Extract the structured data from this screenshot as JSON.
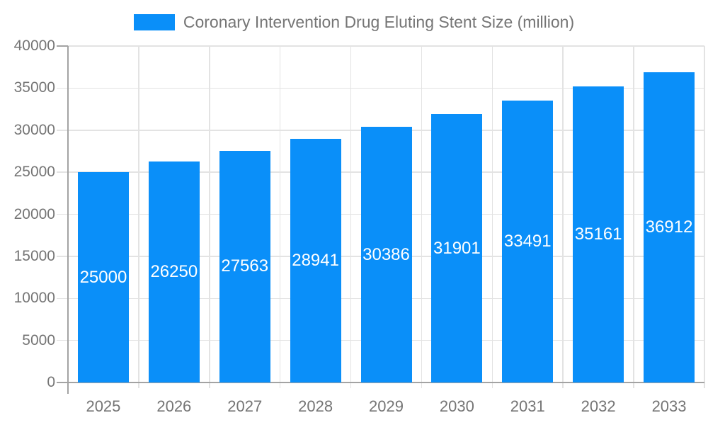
{
  "chart_data": {
    "type": "bar",
    "title": "Coronary Intervention Drug Eluting Stent Size (million)",
    "categories": [
      "2025",
      "2026",
      "2027",
      "2028",
      "2029",
      "2030",
      "2031",
      "2032",
      "2033"
    ],
    "values": [
      25000,
      26250,
      27563,
      28941,
      30386,
      31901,
      33491,
      35161,
      36912
    ],
    "xlabel": "",
    "ylabel": "",
    "ylim": [
      0,
      40000
    ],
    "ytick_step": 5000,
    "grid": true,
    "legend_position": "top-center",
    "colors": {
      "bar": "#0a8ff9",
      "bar_label": "#ffffff",
      "axis_text": "#757575",
      "gridline": "#e3e3e3",
      "axis_line": "#a3a3a3",
      "background": "#ffffff"
    }
  }
}
